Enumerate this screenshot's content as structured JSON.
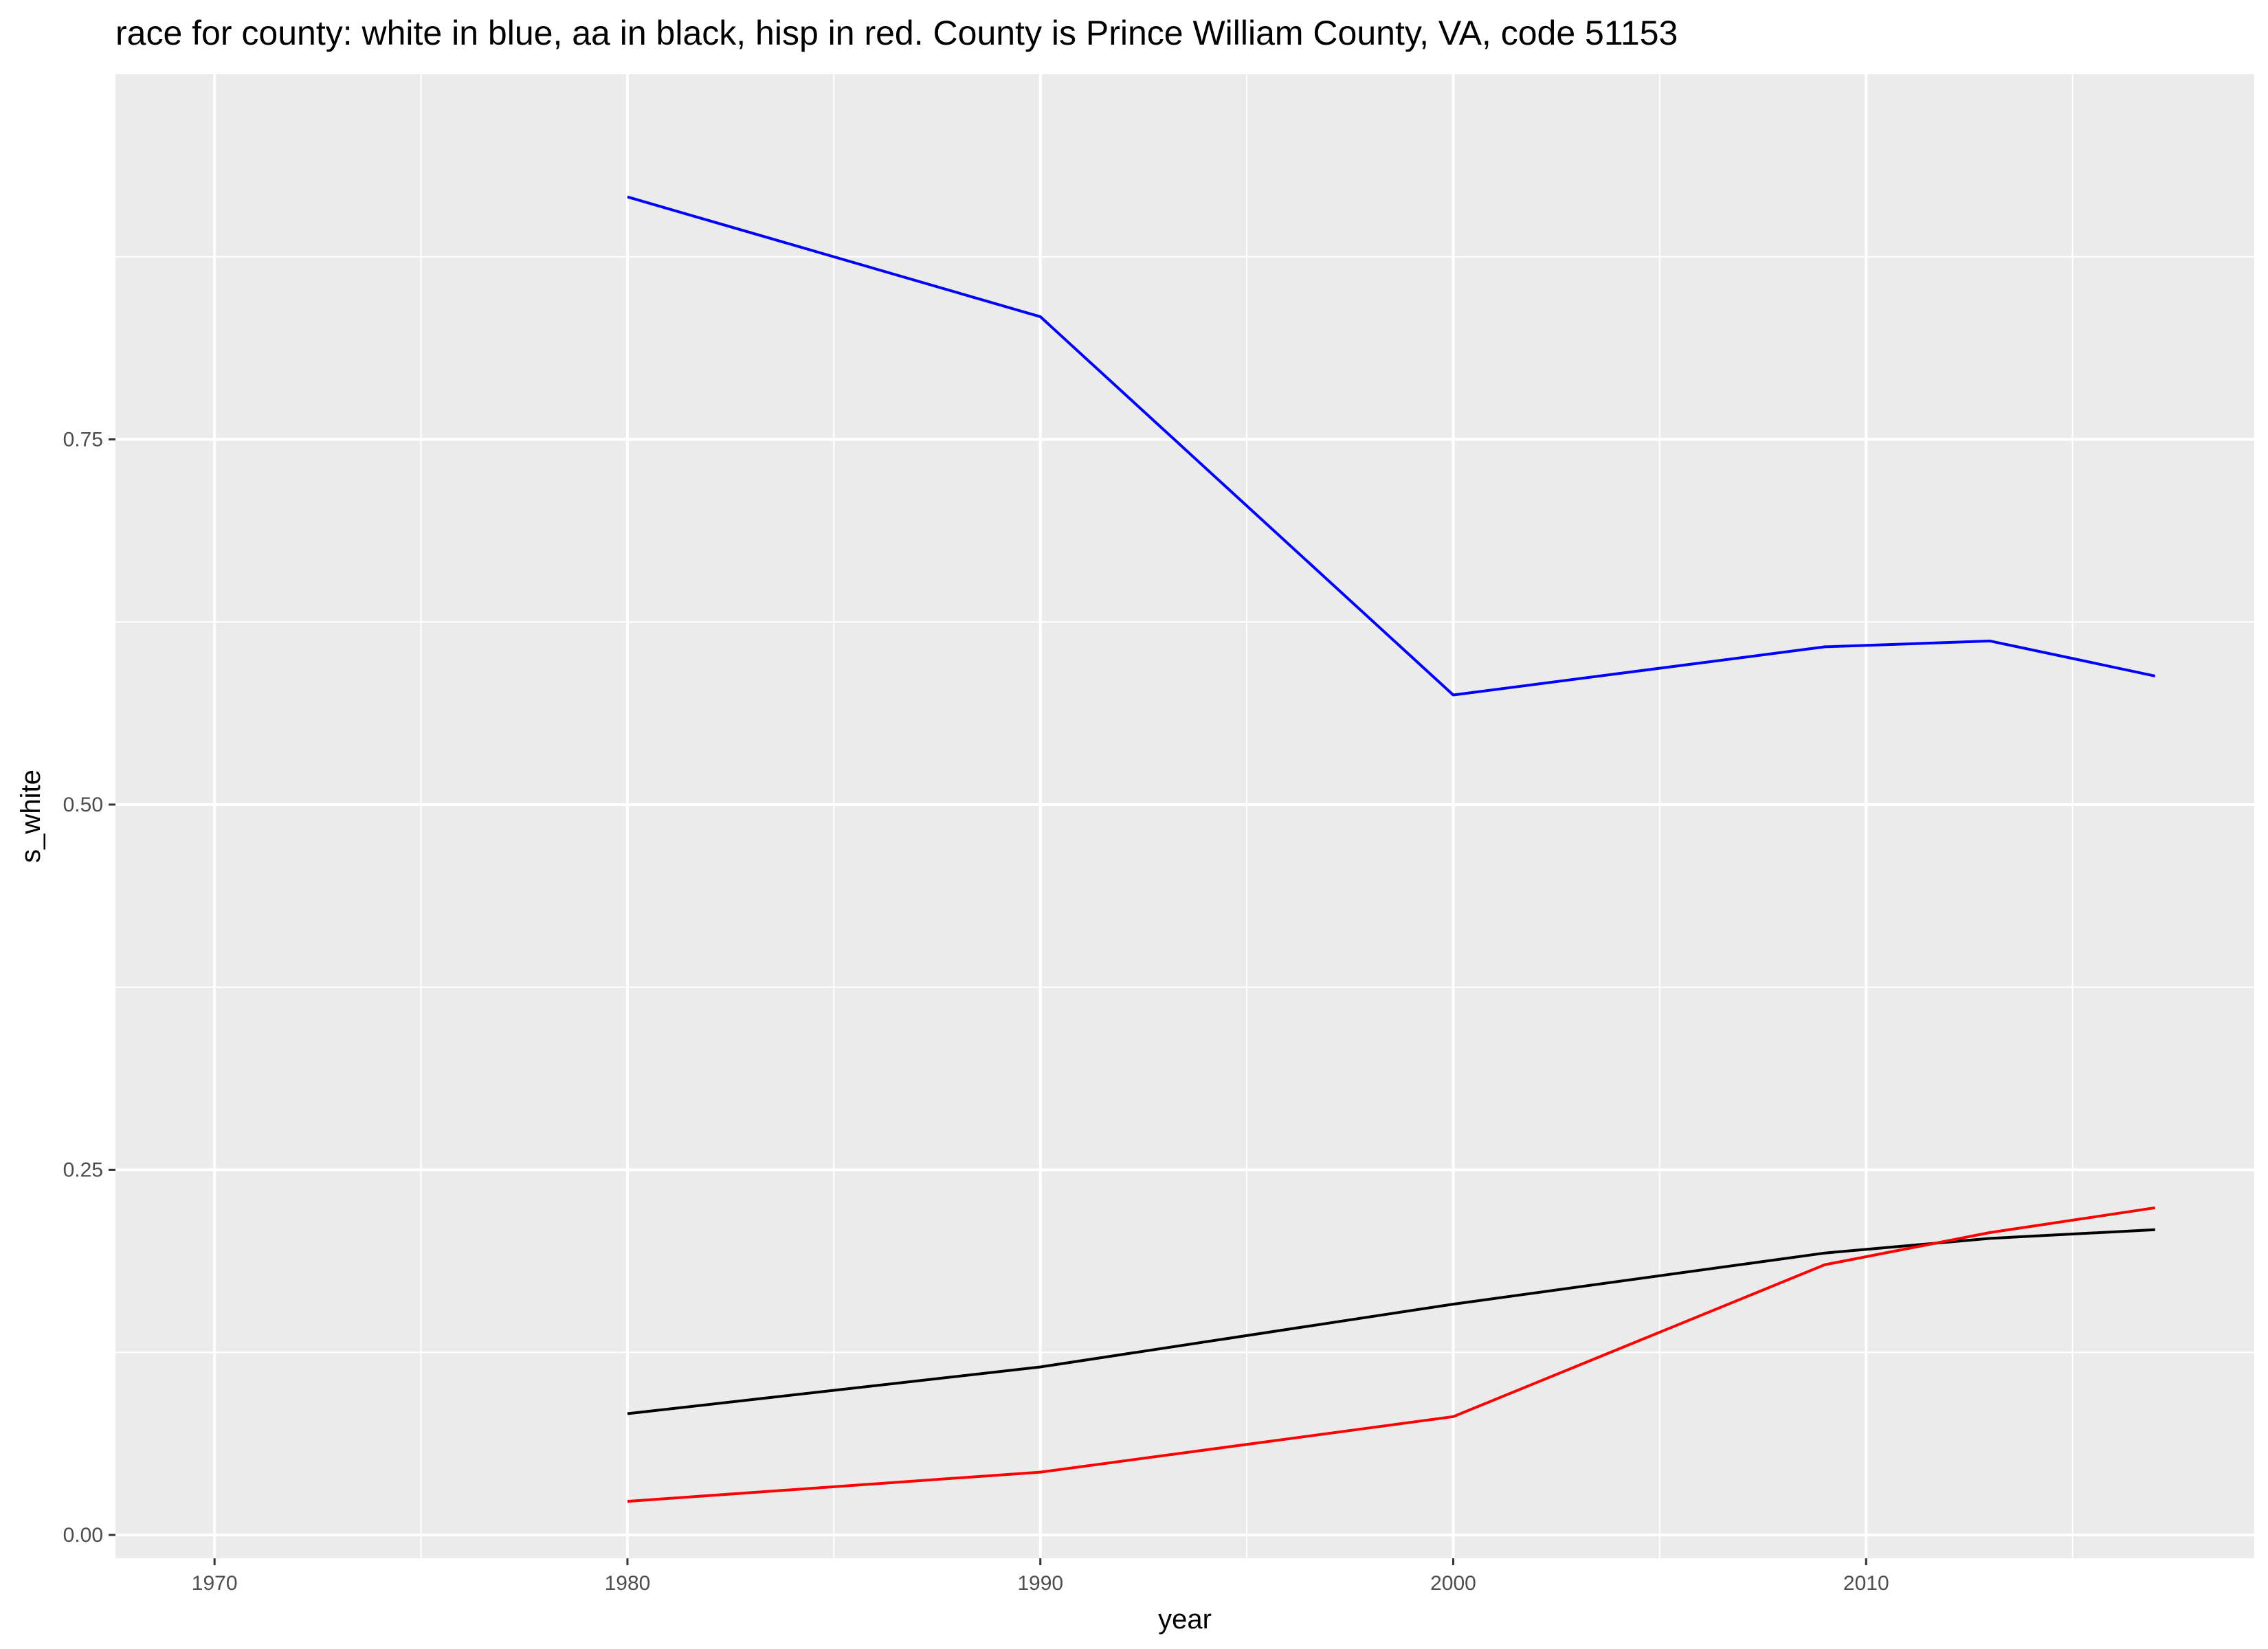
{
  "chart_data": {
    "type": "line",
    "title": "race for county: white in blue, aa in black, hisp in red. County is Prince William County, VA, code 51153",
    "xlabel": "year",
    "ylabel": "s_white",
    "xlim": [
      1967.6,
      2019.4
    ],
    "ylim": [
      -0.016,
      1.0
    ],
    "x_ticks": [
      1970,
      1980,
      1990,
      2000,
      2010
    ],
    "y_ticks": [
      0.0,
      0.25,
      0.5,
      0.75
    ],
    "y_tick_labels": [
      "0.00",
      "0.25",
      "0.50",
      "0.75"
    ],
    "x_minor_ticks": [
      1975,
      1985,
      1995,
      2005,
      2015
    ],
    "y_minor_ticks": [
      0.125,
      0.375,
      0.625,
      0.875
    ],
    "grid": true,
    "background": "#ebebeb",
    "gridline_color": "#ffffff",
    "series": [
      {
        "color": "#0000ff",
        "x": [
          1980,
          1990,
          2000,
          2009,
          2013,
          2017
        ],
        "y": [
          0.916,
          0.834,
          0.575,
          0.608,
          0.612,
          0.588
        ]
      },
      {
        "color": "#000000",
        "x": [
          1980,
          1990,
          2000,
          2009,
          2013,
          2017
        ],
        "y": [
          0.083,
          0.115,
          0.158,
          0.193,
          0.203,
          0.209
        ]
      },
      {
        "color": "#ff0000",
        "x": [
          1980,
          1990,
          2000,
          2009,
          2013,
          2017
        ],
        "y": [
          0.023,
          0.043,
          0.081,
          0.185,
          0.207,
          0.224
        ]
      }
    ]
  }
}
